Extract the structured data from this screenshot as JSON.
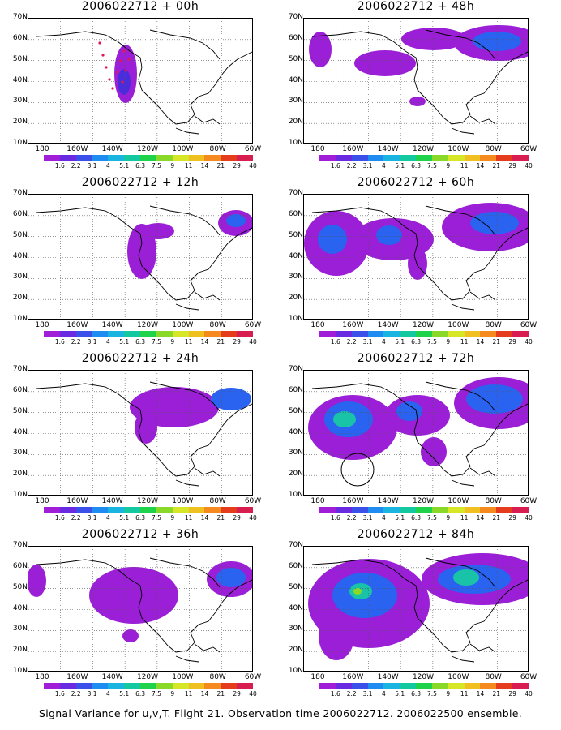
{
  "panels": [
    {
      "title": "2006022712 + 00h",
      "plumes": [
        [
          120,
          68,
          14,
          36,
          "#9a1fd6"
        ],
        [
          118,
          78,
          8,
          16,
          "#4a2cdc"
        ]
      ],
      "dots": true,
      "circle": false
    },
    {
      "title": "2006022712 + 48h",
      "plumes": [
        [
          20,
          38,
          14,
          22,
          "#9a1fd6"
        ],
        [
          100,
          55,
          38,
          16,
          "#9a1fd6"
        ],
        [
          160,
          25,
          40,
          14,
          "#9a1fd6"
        ],
        [
          240,
          30,
          55,
          22,
          "#9a1fd6"
        ],
        [
          238,
          28,
          30,
          12,
          "#2a63f0"
        ],
        [
          140,
          102,
          10,
          6,
          "#9a1fd6"
        ]
      ],
      "dots": false,
      "circle": false
    },
    {
      "title": "2006022712 + 12h",
      "plumes": [
        [
          140,
          70,
          18,
          34,
          "#9a1fd6"
        ],
        [
          160,
          45,
          20,
          10,
          "#9a1fd6"
        ],
        [
          256,
          35,
          22,
          16,
          "#9a1fd6"
        ],
        [
          256,
          32,
          12,
          8,
          "#2a63f0"
        ]
      ],
      "dots": false,
      "circle": false
    },
    {
      "title": "2006022712 + 60h",
      "plumes": [
        [
          40,
          60,
          40,
          40,
          "#9a1fd6"
        ],
        [
          35,
          55,
          18,
          18,
          "#2a63f0"
        ],
        [
          110,
          55,
          50,
          26,
          "#9a1fd6"
        ],
        [
          105,
          50,
          16,
          12,
          "#2a63f0"
        ],
        [
          230,
          40,
          60,
          30,
          "#9a1fd6"
        ],
        [
          235,
          35,
          30,
          14,
          "#2a63f0"
        ],
        [
          140,
          85,
          12,
          20,
          "#9a1fd6"
        ]
      ],
      "dots": false,
      "circle": false
    },
    {
      "title": "2006022712 + 24h",
      "plumes": [
        [
          180,
          45,
          55,
          25,
          "#9a1fd6"
        ],
        [
          145,
          70,
          14,
          20,
          "#9a1fd6"
        ],
        [
          250,
          35,
          25,
          14,
          "#2a63f0"
        ]
      ],
      "dots": false,
      "circle": false
    },
    {
      "title": "2006022712 + 72h",
      "plumes": [
        [
          60,
          70,
          55,
          40,
          "#9a1fd6"
        ],
        [
          55,
          60,
          30,
          22,
          "#2a63f0"
        ],
        [
          50,
          60,
          14,
          10,
          "#19c3a8"
        ],
        [
          140,
          55,
          40,
          25,
          "#9a1fd6"
        ],
        [
          130,
          50,
          16,
          12,
          "#2a63f0"
        ],
        [
          240,
          40,
          55,
          32,
          "#9a1fd6"
        ],
        [
          235,
          35,
          35,
          18,
          "#2a63f0"
        ],
        [
          160,
          100,
          16,
          18,
          "#9a1fd6"
        ]
      ],
      "dots": false,
      "circle": true
    },
    {
      "title": "2006022712 + 36h",
      "plumes": [
        [
          10,
          42,
          12,
          20,
          "#9a1fd6"
        ],
        [
          130,
          60,
          55,
          35,
          "#9a1fd6"
        ],
        [
          250,
          40,
          30,
          22,
          "#9a1fd6"
        ],
        [
          250,
          38,
          18,
          12,
          "#2a63f0"
        ],
        [
          126,
          110,
          10,
          8,
          "#9a1fd6"
        ]
      ],
      "dots": false,
      "circle": false
    },
    {
      "title": "2006022712 + 84h",
      "plumes": [
        [
          80,
          70,
          75,
          55,
          "#9a1fd6"
        ],
        [
          75,
          60,
          40,
          28,
          "#2a63f0"
        ],
        [
          70,
          55,
          14,
          10,
          "#19c3a8"
        ],
        [
          66,
          55,
          5,
          4,
          "#8ad928"
        ],
        [
          220,
          40,
          75,
          32,
          "#9a1fd6"
        ],
        [
          210,
          40,
          45,
          18,
          "#2a63f0"
        ],
        [
          200,
          38,
          16,
          10,
          "#19c3a8"
        ],
        [
          40,
          110,
          22,
          30,
          "#9a1fd6"
        ]
      ],
      "dots": false,
      "circle": false
    }
  ],
  "y_labels": [
    "70N",
    "60N",
    "50N",
    "40N",
    "30N",
    "20N",
    "10N"
  ],
  "x_labels": [
    "180",
    "160W",
    "140W",
    "120W",
    "100W",
    "80W",
    "60W"
  ],
  "colorbar": {
    "colors": [
      "#a01ed8",
      "#6a2ae2",
      "#3a50e8",
      "#1e8cf0",
      "#19b4e0",
      "#14c8a0",
      "#1ed24a",
      "#8ad928",
      "#d8e628",
      "#f0c020",
      "#f58a1e",
      "#e63c1e",
      "#d81e50"
    ],
    "labels": [
      "1.6",
      "2.2",
      "3.1",
      "4",
      "5.1",
      "6.3",
      "7.5",
      "9",
      "11",
      "14",
      "21",
      "29",
      "40"
    ]
  },
  "caption": "Signal Variance for u,v,T. Flight 21. Observation time 2006022712. 2006022500 ensemble."
}
